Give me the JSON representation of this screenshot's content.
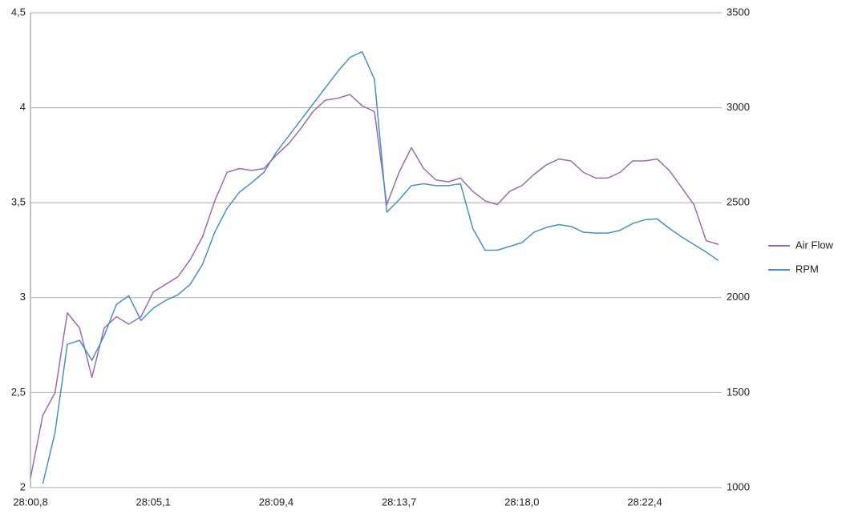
{
  "chart_data": {
    "type": "line",
    "categories": [
      "28:00,8",
      null,
      null,
      null,
      null,
      null,
      null,
      null,
      null,
      null,
      "28:05,1",
      null,
      null,
      null,
      null,
      null,
      null,
      null,
      null,
      null,
      "28:09,4",
      null,
      null,
      null,
      null,
      null,
      null,
      null,
      null,
      null,
      "28:13,7",
      null,
      null,
      null,
      null,
      null,
      null,
      null,
      null,
      null,
      "28:18,0",
      null,
      null,
      null,
      null,
      null,
      null,
      null,
      null,
      null,
      "28:22,4",
      null,
      null,
      null,
      null,
      null,
      null
    ],
    "series": [
      {
        "name": "Air Flow",
        "color": "#9b6bb0",
        "axis": "y",
        "values": [
          2.05,
          2.38,
          2.5,
          2.92,
          2.84,
          2.58,
          2.84,
          2.9,
          2.86,
          2.9,
          3.03,
          3.07,
          3.11,
          3.2,
          3.32,
          3.51,
          3.66,
          3.68,
          3.67,
          3.68,
          3.75,
          3.81,
          3.89,
          3.98,
          4.04,
          4.05,
          4.07,
          4.01,
          3.98,
          3.49,
          3.66,
          3.79,
          3.68,
          3.62,
          3.61,
          3.63,
          3.56,
          3.51,
          3.49,
          3.56,
          3.59,
          3.65,
          3.7,
          3.73,
          3.72,
          3.66,
          3.63,
          3.63,
          3.66,
          3.72,
          3.72,
          3.73,
          3.67,
          3.58,
          3.49,
          3.3,
          3.28
        ]
      },
      {
        "name": "RPM",
        "color": "#4a8fc8",
        "axis": "y2",
        "values": [
          null,
          1020,
          1290,
          1755,
          1775,
          1670,
          1800,
          1965,
          2010,
          1880,
          1945,
          1985,
          2015,
          2070,
          2175,
          2345,
          2470,
          2555,
          2605,
          2660,
          2765,
          2850,
          2935,
          3020,
          3105,
          3190,
          3265,
          3295,
          3150,
          2450,
          2515,
          2590,
          2600,
          2590,
          2590,
          2600,
          2365,
          2250,
          2250,
          2270,
          2290,
          2345,
          2370,
          2385,
          2375,
          2345,
          2340,
          2340,
          2355,
          2390,
          2410,
          2415,
          2365,
          2320,
          2280,
          2240,
          2195
        ]
      }
    ],
    "ylim": [
      2,
      4.5
    ],
    "yticks": [
      2,
      {
        "value": 2.5,
        "label": "2,5"
      },
      3,
      {
        "value": 3.5,
        "label": "3,5"
      },
      4,
      {
        "value": 4.5,
        "label": "4,5"
      }
    ],
    "y2lim": [
      1000,
      3500
    ],
    "y2ticks": [
      1000,
      1500,
      2000,
      2500,
      3000,
      3500
    ],
    "grid": true,
    "legend": "right"
  }
}
